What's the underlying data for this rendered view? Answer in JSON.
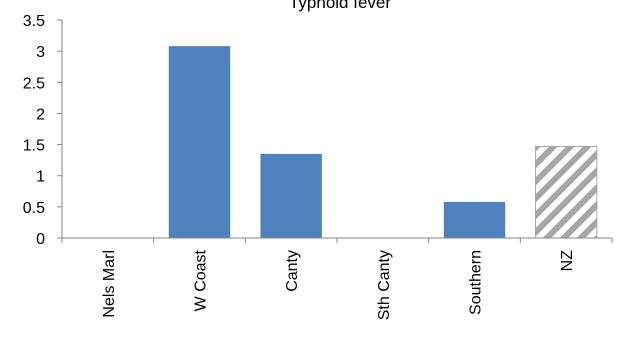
{
  "chart_data": {
    "type": "bar",
    "title": "Typhoid fever",
    "categories": [
      "Nels Marl",
      "W Coast",
      "Canty",
      "Sth Canty",
      "Southern",
      "NZ"
    ],
    "values": [
      0,
      3.08,
      1.35,
      0,
      0.58,
      1.47
    ],
    "ylim": [
      0,
      3.5
    ],
    "yticks": [
      "0",
      "0.5",
      "1",
      "1.5",
      "2",
      "2.5",
      "3",
      "3.5"
    ],
    "grid": false,
    "bar_color": "#4f81bd",
    "highlight_bar_category": "NZ",
    "highlight_bar_style": "diagonal grey hatch",
    "highlight_color": "#a6a6a6"
  }
}
